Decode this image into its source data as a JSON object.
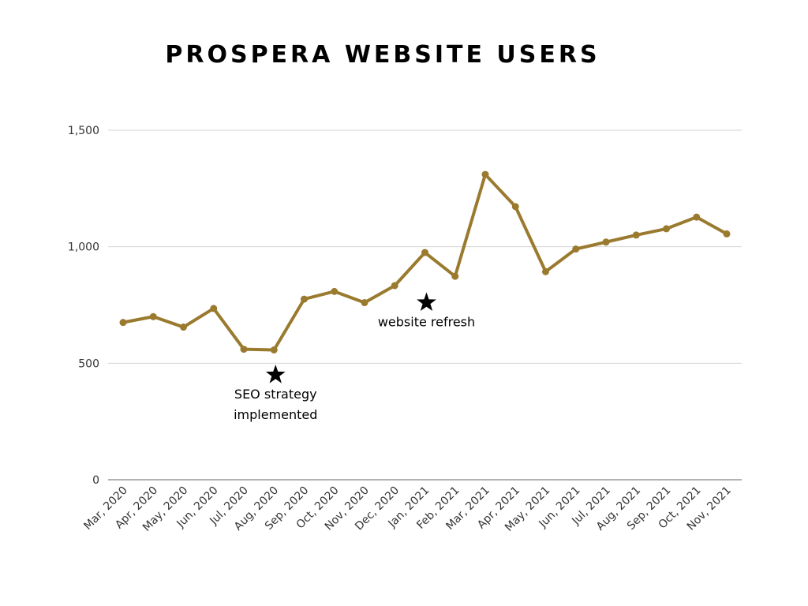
{
  "chart_data": {
    "type": "line",
    "title": "PROSPERA WEBSITE USERS",
    "xlabel": "",
    "ylabel": "",
    "categories": [
      "Mar, 2020",
      "Apr, 2020",
      "May, 2020",
      "Jun, 2020",
      "Jul, 2020",
      "Aug, 2020",
      "Sep, 2020",
      "Oct, 2020",
      "Nov, 2020",
      "Dec, 2020",
      "Jan, 2021",
      "Feb, 2021",
      "Mar, 2021",
      "Apr, 2021",
      "May, 2021",
      "Jun, 2021",
      "Jul, 2021",
      "Aug, 2021",
      "Sep, 2021",
      "Oct, 2021",
      "Nov, 2021"
    ],
    "series": [
      {
        "values": [
          675,
          700,
          655,
          735,
          560,
          557,
          775,
          808,
          760,
          833,
          975,
          873,
          1310,
          1172,
          893,
          990,
          1020,
          1050,
          1077,
          1127,
          1055
        ],
        "color": "#9a7a2e"
      }
    ],
    "ylim": [
      0,
      1500
    ],
    "yticks": [
      0,
      500,
      1000,
      1500
    ],
    "ytick_labels": [
      "0",
      "500",
      "1,000",
      "1,500"
    ],
    "grid": true,
    "annotations": [
      {
        "category": "Aug, 2020",
        "y": 450,
        "marker": "star",
        "lines": [
          "SEO strategy",
          "implemented"
        ]
      },
      {
        "category": "Jan, 2021",
        "y": 760,
        "marker": "star",
        "lines": [
          "website refresh"
        ]
      }
    ]
  }
}
